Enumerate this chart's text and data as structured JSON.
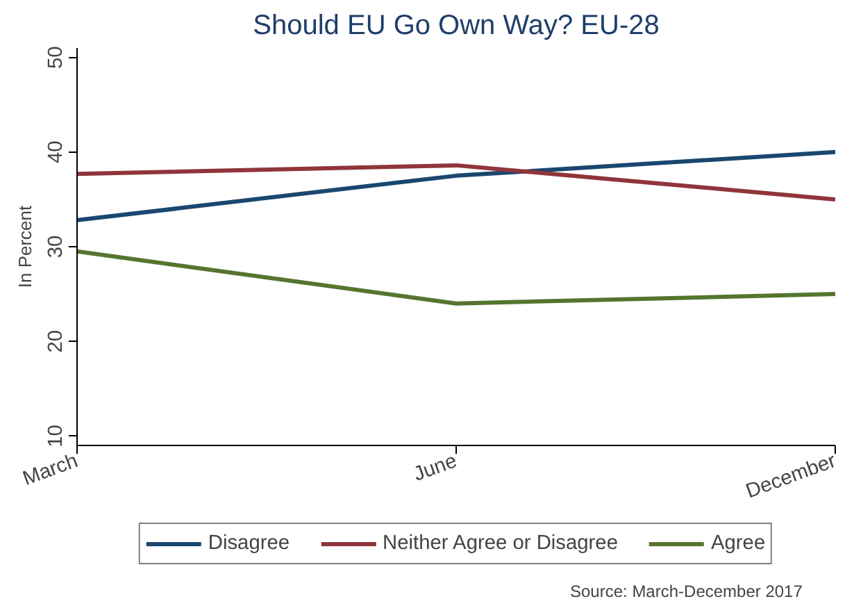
{
  "chart_data": {
    "type": "line",
    "title": "Should EU Go Own Way? EU-28",
    "ylabel": "In Percent",
    "categories": [
      "March",
      "June",
      "December"
    ],
    "series": [
      {
        "name": "Disagree",
        "color": "#1a476f",
        "values": [
          32.8,
          37.5,
          40
        ]
      },
      {
        "name": "Neither Agree or Disagree",
        "color": "#90353b",
        "values": [
          37.7,
          38.6,
          35
        ]
      },
      {
        "name": "Agree",
        "color": "#55752f",
        "values": [
          29.5,
          24,
          25
        ]
      }
    ],
    "ylim": [
      9,
      51
    ],
    "yticks": [
      10,
      20,
      30,
      40,
      50
    ],
    "grid": false,
    "legend": "bottom",
    "marker": "none",
    "line_style": "solid",
    "annotations": [
      "Source: March-December 2017"
    ]
  }
}
